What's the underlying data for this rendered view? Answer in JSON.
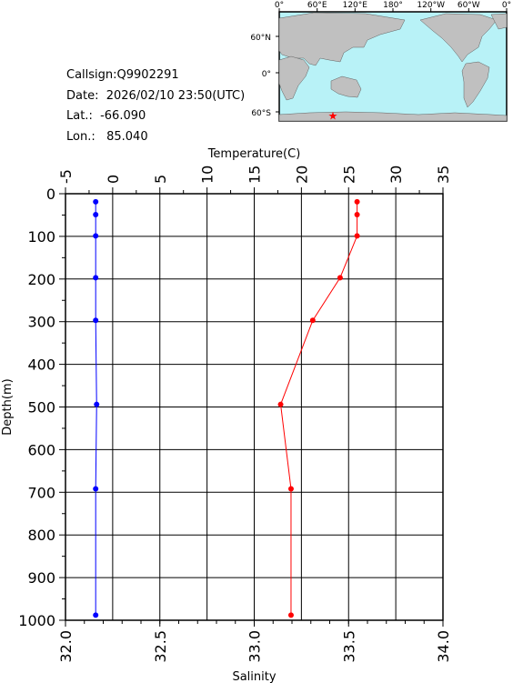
{
  "info": {
    "callsign": "Callsign:Q9902291",
    "date": "Date:  2026/02/10 23:50(UTC)",
    "lat": "Lat.:  -66.090",
    "lon": "Lon.:   85.040"
  },
  "map": {
    "top_labels": [
      "0°",
      "60°E",
      "120°E",
      "180°",
      "120°W",
      "60°W",
      "0°"
    ],
    "lat_labels": [
      "60°N",
      "0°",
      "60°S"
    ],
    "marker": {
      "lon": 85.04,
      "lat": -66.09
    },
    "colors": {
      "ocean": "#b8f2f7",
      "land": "#c0c0c0",
      "marker": "#ff0000"
    }
  },
  "chart_data": {
    "type": "line",
    "xlabel_top": "Temperature(C)",
    "xlabel_bottom": "Salinity",
    "ylabel": "Depth(m)",
    "temperature_range": [
      -5,
      35
    ],
    "temperature_ticks": [
      "-5",
      "0",
      "5",
      "10",
      "15",
      "20",
      "25",
      "30",
      "35"
    ],
    "salinity_range": [
      32.0,
      34.0
    ],
    "salinity_ticks": [
      "32.0",
      "32.5",
      "33.0",
      "33.5",
      "34.0"
    ],
    "depth_range": [
      0,
      1000
    ],
    "depth_ticks": [
      "0",
      "100",
      "200",
      "300",
      "400",
      "500",
      "600",
      "700",
      "800",
      "900",
      "1000"
    ],
    "grid": true,
    "series": [
      {
        "axis": "temperature",
        "color": "#ff0000",
        "points": [
          [
            25.9,
            19
          ],
          [
            25.9,
            49
          ],
          [
            25.9,
            99
          ],
          [
            24.1,
            197
          ],
          [
            21.2,
            297
          ],
          [
            17.8,
            494
          ],
          [
            18.9,
            692
          ],
          [
            18.9,
            988
          ]
        ]
      },
      {
        "axis": "salinity",
        "color": "#0000ff",
        "points": [
          [
            32.16,
            19
          ],
          [
            32.16,
            49
          ],
          [
            32.16,
            99
          ],
          [
            32.16,
            197
          ],
          [
            32.16,
            297
          ],
          [
            32.165,
            494
          ],
          [
            32.16,
            692
          ],
          [
            32.16,
            988
          ]
        ]
      }
    ]
  }
}
